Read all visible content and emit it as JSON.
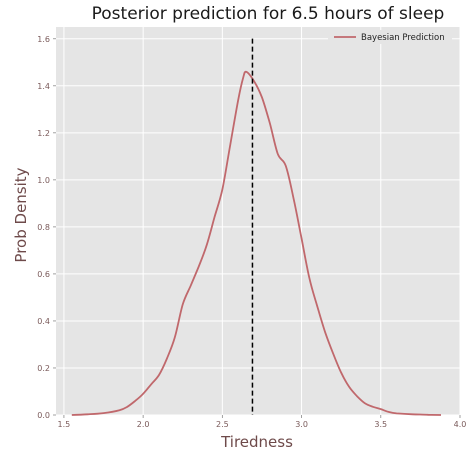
{
  "chart_data": {
    "type": "line",
    "title": "Posterior prediction for 6.5 hours of sleep",
    "xlabel": "Tiredness",
    "ylabel": "Prob Density",
    "xlim": [
      1.45,
      4.0
    ],
    "ylim": [
      0.0,
      1.65
    ],
    "xticks": [
      "1.5",
      "2.0",
      "2.5",
      "3.0",
      "3.5",
      "4.0"
    ],
    "xtick_values": [
      1.5,
      2.0,
      2.5,
      3.0,
      3.5,
      4.0
    ],
    "yticks": [
      "0.0",
      "0.2",
      "0.4",
      "0.6",
      "0.8",
      "1.0",
      "1.2",
      "1.4",
      "1.6"
    ],
    "ytick_values": [
      0.0,
      0.2,
      0.4,
      0.6,
      0.8,
      1.0,
      1.2,
      1.4,
      1.6
    ],
    "grid": true,
    "legend_position": "top-right",
    "series": [
      {
        "name": "Bayesian Prediction",
        "color": "#c0686c",
        "x": [
          1.55,
          1.65,
          1.75,
          1.85,
          1.9,
          1.95,
          2.0,
          2.05,
          2.1,
          2.15,
          2.2,
          2.25,
          2.3,
          2.35,
          2.4,
          2.45,
          2.5,
          2.55,
          2.6,
          2.63,
          2.65,
          2.7,
          2.75,
          2.8,
          2.85,
          2.9,
          2.95,
          3.0,
          3.05,
          3.1,
          3.15,
          3.2,
          3.25,
          3.3,
          3.35,
          3.4,
          3.45,
          3.5,
          3.55,
          3.6,
          3.7,
          3.8,
          3.88
        ],
        "y": [
          0.0,
          0.003,
          0.008,
          0.02,
          0.035,
          0.06,
          0.09,
          0.13,
          0.17,
          0.24,
          0.33,
          0.47,
          0.55,
          0.63,
          0.72,
          0.84,
          0.96,
          1.15,
          1.34,
          1.43,
          1.46,
          1.42,
          1.35,
          1.24,
          1.11,
          1.06,
          0.92,
          0.75,
          0.58,
          0.46,
          0.35,
          0.26,
          0.18,
          0.12,
          0.08,
          0.05,
          0.035,
          0.025,
          0.013,
          0.007,
          0.003,
          0.001,
          0.0
        ]
      }
    ],
    "vline": {
      "x": 2.69,
      "style": "dashed",
      "color": "#000000"
    }
  }
}
